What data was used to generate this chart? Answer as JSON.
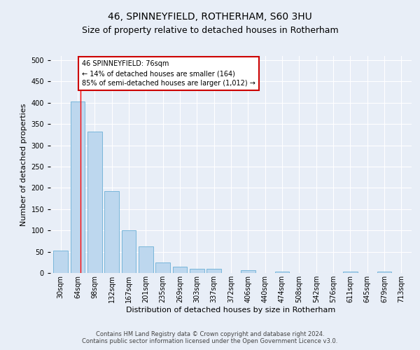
{
  "title1": "46, SPINNEYFIELD, ROTHERHAM, S60 3HU",
  "title2": "Size of property relative to detached houses in Rotherham",
  "xlabel": "Distribution of detached houses by size in Rotherham",
  "ylabel": "Number of detached properties",
  "categories": [
    "30sqm",
    "64sqm",
    "98sqm",
    "132sqm",
    "167sqm",
    "201sqm",
    "235sqm",
    "269sqm",
    "303sqm",
    "337sqm",
    "372sqm",
    "406sqm",
    "440sqm",
    "474sqm",
    "508sqm",
    "542sqm",
    "576sqm",
    "611sqm",
    "645sqm",
    "679sqm",
    "713sqm"
  ],
  "values": [
    52,
    403,
    332,
    192,
    100,
    62,
    25,
    14,
    10,
    10,
    0,
    6,
    0,
    4,
    0,
    0,
    0,
    4,
    0,
    4,
    0
  ],
  "bar_color": "#bdd7ee",
  "bar_edge_color": "#6aafd6",
  "red_line_x": 1.18,
  "annotation_text": "46 SPINNEYFIELD: 76sqm\n← 14% of detached houses are smaller (164)\n85% of semi-detached houses are larger (1,012) →",
  "annotation_box_color": "#ffffff",
  "annotation_box_edge_color": "#cc0000",
  "footer1": "Contains HM Land Registry data © Crown copyright and database right 2024.",
  "footer2": "Contains public sector information licensed under the Open Government Licence v3.0.",
  "ylim": [
    0,
    510
  ],
  "yticks": [
    0,
    50,
    100,
    150,
    200,
    250,
    300,
    350,
    400,
    450,
    500
  ],
  "background_color": "#e8eef7",
  "grid_color": "#ffffff",
  "title1_fontsize": 10,
  "title2_fontsize": 9,
  "xlabel_fontsize": 8,
  "ylabel_fontsize": 8,
  "tick_fontsize": 7,
  "annotation_fontsize": 7,
  "footer_fontsize": 6
}
